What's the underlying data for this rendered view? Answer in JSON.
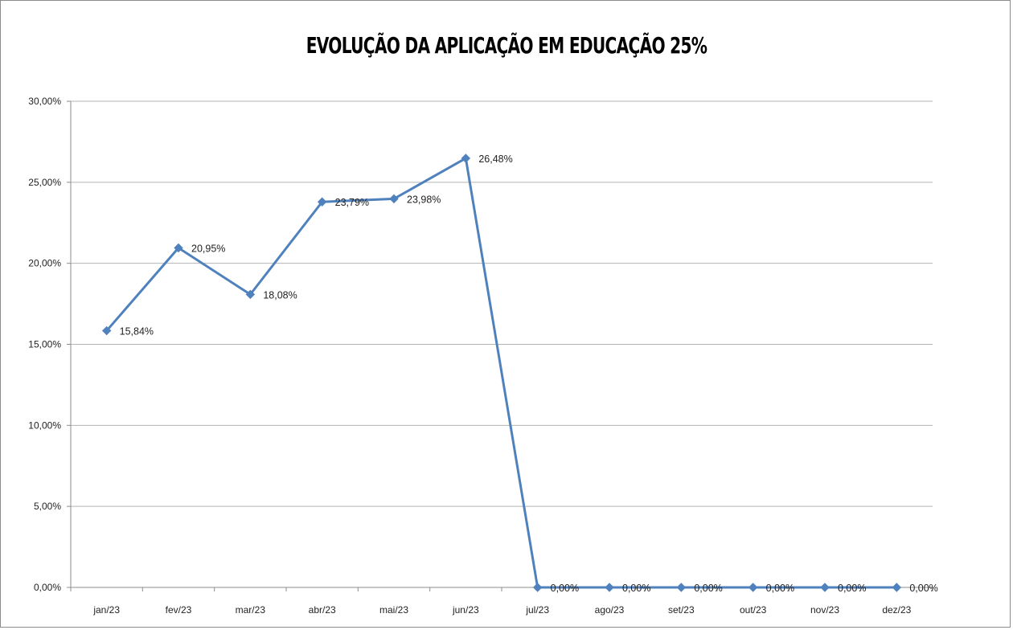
{
  "chart_data": {
    "type": "line",
    "title": "EVOLUÇÃO DA  APLICAÇÃO EM EDUCAÇÃO 25%",
    "categories": [
      "jan/23",
      "fev/23",
      "mar/23",
      "abr/23",
      "mai/23",
      "jun/23",
      "jul/23",
      "ago/23",
      "set/23",
      "out/23",
      "nov/23",
      "dez/23"
    ],
    "series": [
      {
        "values": [
          15.84,
          20.95,
          18.08,
          23.79,
          23.98,
          26.48,
          0,
          0,
          0,
          0,
          0,
          0
        ],
        "labels": [
          "15,84%",
          "20,95%",
          "18,08%",
          "23,79%",
          "23,98%",
          "26,48%",
          "0,00%",
          "0,00%",
          "0,00%",
          "0,00%",
          "0,00%",
          "0,00%"
        ]
      }
    ],
    "yticks": [
      "0,00%",
      "5,00%",
      "10,00%",
      "15,00%",
      "20,00%",
      "25,00%",
      "30,00%"
    ],
    "ylim": [
      0,
      30
    ],
    "grid": true,
    "line_color": "#4f81bd",
    "xlabel": "",
    "ylabel": ""
  }
}
